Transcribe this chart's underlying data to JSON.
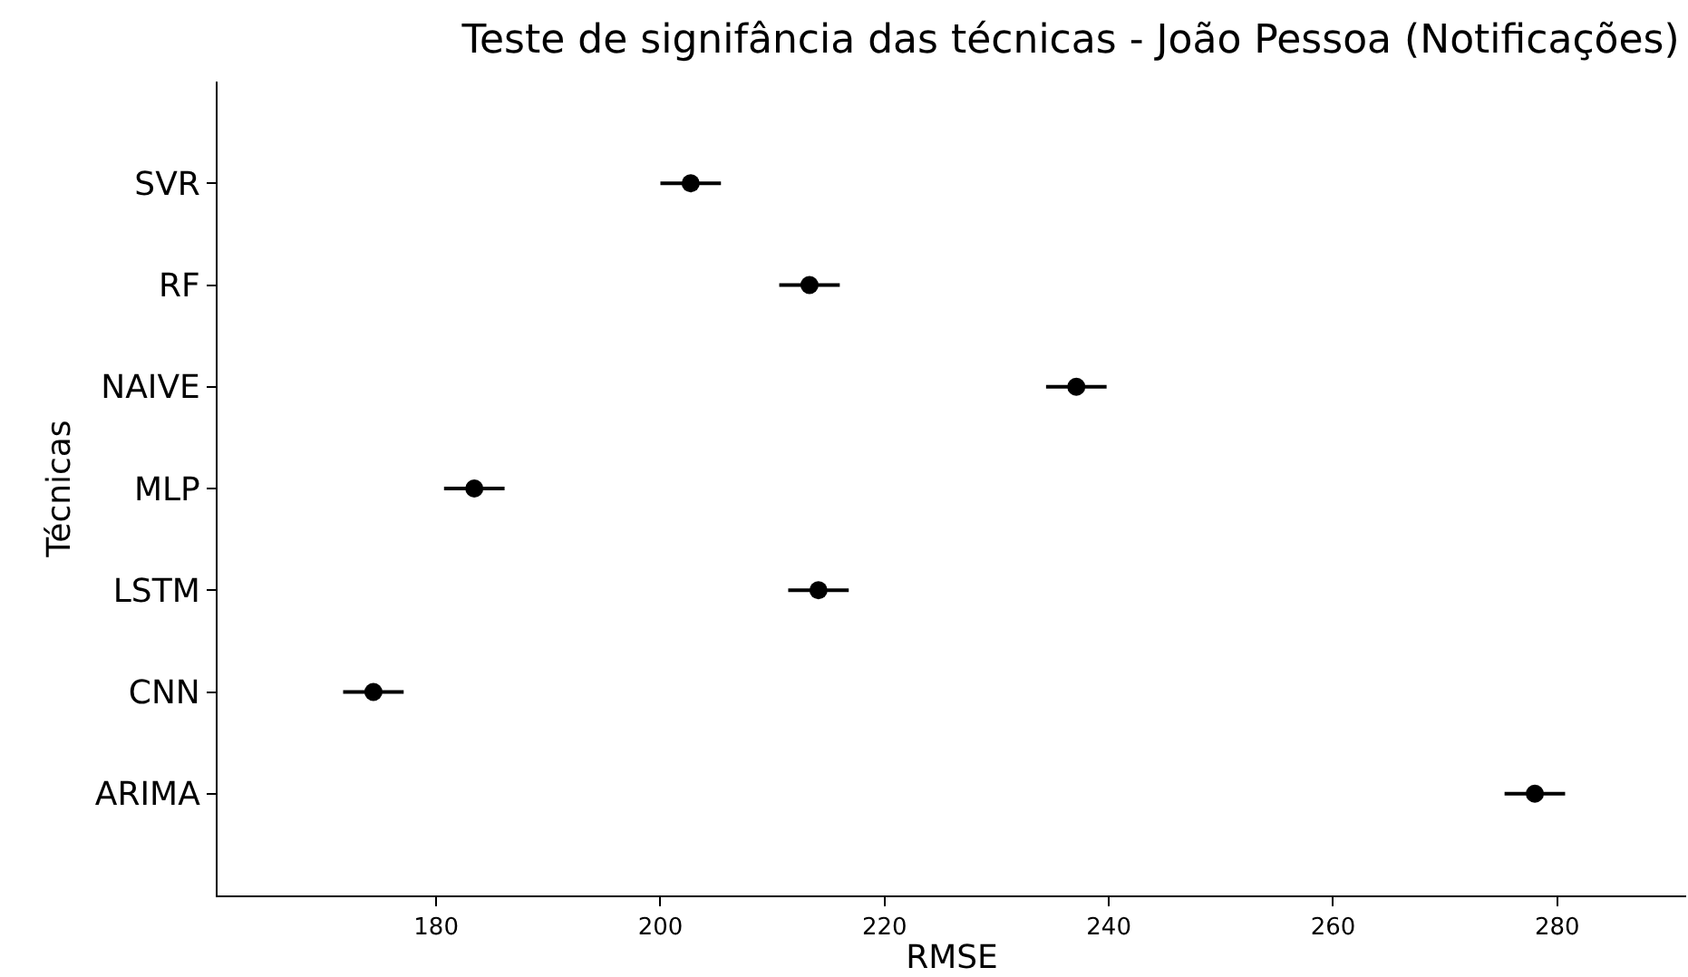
{
  "chart_data": {
    "type": "scatter",
    "title": "Teste de signifância das técnicas - João Pessoa (Notificações)",
    "xlabel": "RMSE",
    "ylabel": "Técnicas",
    "categories": [
      "SVR",
      "RF",
      "NAIVE",
      "MLP",
      "LSTM",
      "CNN",
      "ARIMA"
    ],
    "orientation": "horizontal",
    "values": [
      202.7,
      213.3,
      237.1,
      183.4,
      214.1,
      174.4,
      278.0
    ],
    "errors": [
      2.7,
      2.7,
      2.7,
      2.7,
      2.7,
      2.7,
      2.7
    ],
    "color": "#000000",
    "marker": "circle",
    "xlim": [
      160.5,
      291.5
    ],
    "xticks": [
      180,
      200,
      220,
      240,
      260,
      280
    ],
    "grid": false
  }
}
